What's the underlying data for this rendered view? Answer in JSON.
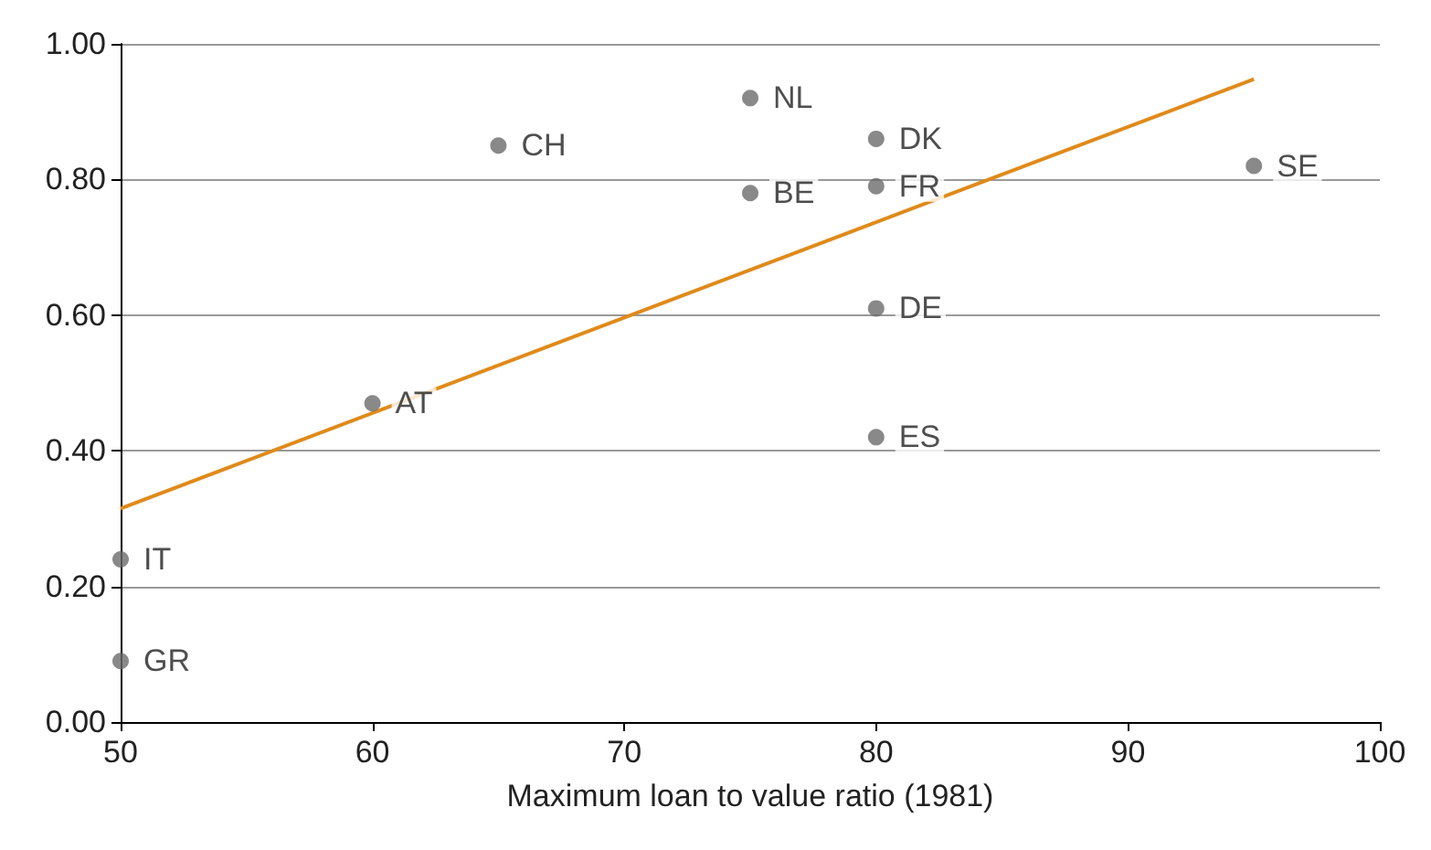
{
  "chart_data": {
    "type": "scatter",
    "xlabel": "Maximum loan to value ratio (1981)",
    "xlim": [
      50,
      100
    ],
    "xticks": [
      50,
      60,
      70,
      80,
      90,
      100
    ],
    "ylim": [
      0,
      1
    ],
    "yticks": [
      {
        "value": 0,
        "label": "0.00"
      },
      {
        "value": 0.2,
        "label": "0.20"
      },
      {
        "value": 0.4,
        "label": "0.40"
      },
      {
        "value": 0.6,
        "label": "0.60"
      },
      {
        "value": 0.8,
        "label": "0.80"
      },
      {
        "value": 1,
        "label": "1.00"
      }
    ],
    "grid": "y",
    "series": [
      {
        "marker": "circle",
        "color": "#6b6b6b",
        "x": [
          65,
          75,
          75,
          80,
          80,
          80,
          80,
          95,
          60,
          50,
          50
        ],
        "values": [
          0.85,
          0.92,
          0.78,
          0.86,
          0.79,
          0.61,
          0.42,
          0.82,
          0.47,
          0.24,
          0.09
        ]
      },
      {
        "type": "line",
        "color": "#e08a1a",
        "x": [
          50,
          95
        ],
        "values": [
          0.315,
          0.948
        ]
      }
    ],
    "annotations": [
      {
        "text": "CH",
        "x": 65,
        "y": 0.85
      },
      {
        "text": "NL",
        "x": 75,
        "y": 0.92
      },
      {
        "text": "BE",
        "x": 75,
        "y": 0.78
      },
      {
        "text": "DK",
        "x": 80,
        "y": 0.86
      },
      {
        "text": "FR",
        "x": 80,
        "y": 0.79
      },
      {
        "text": "DE",
        "x": 80,
        "y": 0.61
      },
      {
        "text": "ES",
        "x": 80,
        "y": 0.42
      },
      {
        "text": "SE",
        "x": 95,
        "y": 0.82
      },
      {
        "text": "AT",
        "x": 60,
        "y": 0.47
      },
      {
        "text": "IT",
        "x": 50,
        "y": 0.24
      },
      {
        "text": "GR",
        "x": 50,
        "y": 0.09
      }
    ]
  }
}
